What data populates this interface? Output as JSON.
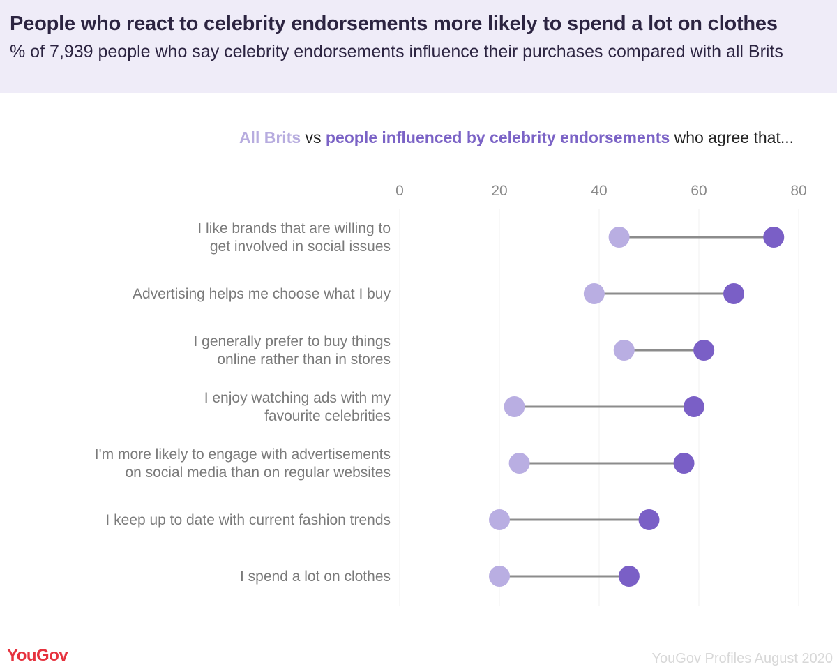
{
  "header": {
    "title": "People who react to celebrity endorsements more likely to spend a lot on clothes",
    "subtitle": " % of 7,939 people who say celebrity endorsements influence their purchases compared with all Brits"
  },
  "legend": {
    "series_a": "All Brits",
    "joiner": "vs",
    "series_b": "people influenced by celebrity endorsements",
    "suffix": "who agree that..."
  },
  "colors": {
    "all_brits": "#b9aee2",
    "influenced": "#7a5fc6",
    "connector": "#8c8c8c",
    "grid": "#f0f0f0",
    "header_bg": "#efecf8"
  },
  "chart_data": {
    "type": "dumbbell",
    "xlim": [
      0,
      80
    ],
    "x_ticks": [
      "0",
      "20",
      "40",
      "60",
      "80"
    ],
    "x_tick_values": [
      0,
      20,
      40,
      60,
      80
    ],
    "grid": true,
    "categories": [
      [
        "I like brands that are willing to",
        "get involved in social issues"
      ],
      [
        "Advertising helps me choose what I buy"
      ],
      [
        "I generally prefer to buy things",
        "online rather than in stores"
      ],
      [
        "I enjoy watching ads with my",
        "favourite celebrities"
      ],
      [
        "I'm more likely to engage with advertisements",
        "on social media than on regular websites"
      ],
      [
        "I keep up to date with current fashion trends"
      ],
      [
        "I spend a lot on clothes"
      ]
    ],
    "series": [
      {
        "name": "All Brits",
        "values": [
          44,
          39,
          45,
          23,
          24,
          20,
          20
        ]
      },
      {
        "name": "people influenced by celebrity endorsements",
        "values": [
          75,
          67,
          61,
          59,
          57,
          50,
          46
        ]
      }
    ]
  },
  "footer": {
    "logo": "YouGov",
    "source": "YouGov Profiles August 2020"
  }
}
